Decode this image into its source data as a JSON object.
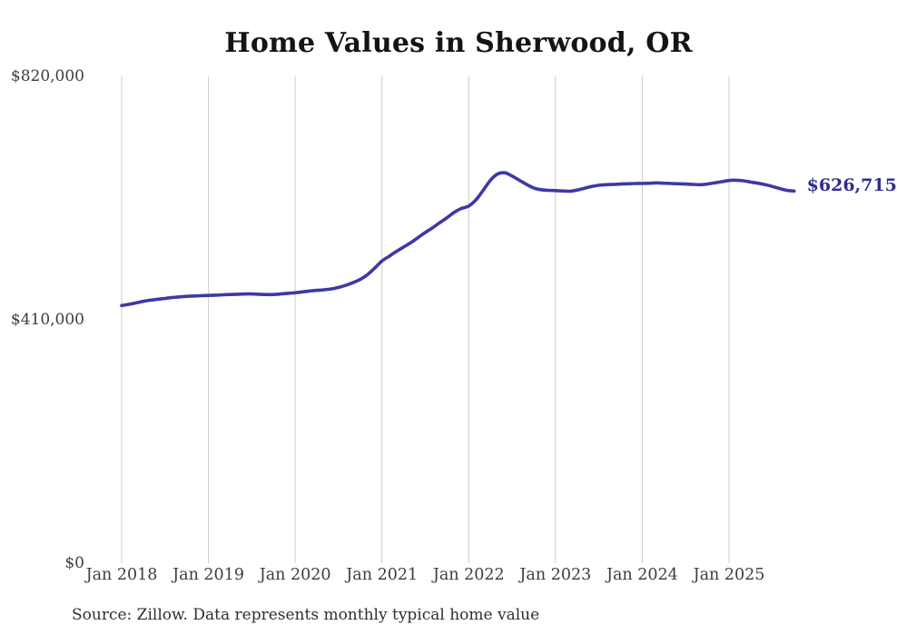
{
  "chart_data": {
    "type": "line",
    "title": "Home Values in Sherwood, OR",
    "source_note": "Source: Zillow. Data represents monthly typical home value",
    "start_month": "2018-01",
    "frequency": "monthly",
    "ylim": [
      0,
      820000
    ],
    "grid": "vertical-only",
    "legend": "none",
    "x_tick_labels": [
      "Jan 2018",
      "Jan 2019",
      "Jan 2020",
      "Jan 2021",
      "Jan 2022",
      "Jan 2023",
      "Jan 2024",
      "Jan 2025"
    ],
    "y_ticks": [
      {
        "label": "$820,000",
        "value": 820000
      },
      {
        "label": "$410,000",
        "value": 410000
      },
      {
        "label": "$0",
        "value": 0
      }
    ],
    "series": [
      {
        "name": "Typical home value",
        "end_label": "$626,715",
        "end_value": 626715,
        "values": [
          434000,
          436000,
          438500,
          441000,
          443000,
          444500,
          446000,
          447500,
          448500,
          449500,
          450000,
          450500,
          451000,
          451500,
          452000,
          452500,
          453000,
          453500,
          453500,
          453000,
          452500,
          452500,
          453500,
          454500,
          455500,
          457000,
          458500,
          459500,
          460500,
          462000,
          464500,
          468000,
          472500,
          478000,
          486000,
          497000,
          509000,
          517000,
          525000,
          532500,
          540000,
          548500,
          557000,
          565000,
          573500,
          582000,
          591000,
          597500,
          601500,
          612000,
          628000,
          645000,
          655500,
          657500,
          652000,
          645000,
          638000,
          632000,
          629000,
          628000,
          627500,
          627000,
          626500,
          628500,
          631500,
          634500,
          636500,
          637500,
          638000,
          638500,
          639000,
          639500,
          639500,
          640000,
          640500,
          640000,
          639500,
          639000,
          638500,
          638000,
          637500,
          638500,
          640500,
          642500,
          644500,
          645000,
          644000,
          642000,
          640000,
          637500,
          634500,
          631000,
          628000,
          626715
        ]
      }
    ],
    "theme": {
      "line_color": "#3e38a6",
      "end_label_color": "#2f2d91",
      "grid_color": "#cccccc",
      "tick_text_color": "#3d3d3d",
      "title_color": "#141414",
      "source_color": "#2e2e2e",
      "background": "#ffffff"
    }
  }
}
